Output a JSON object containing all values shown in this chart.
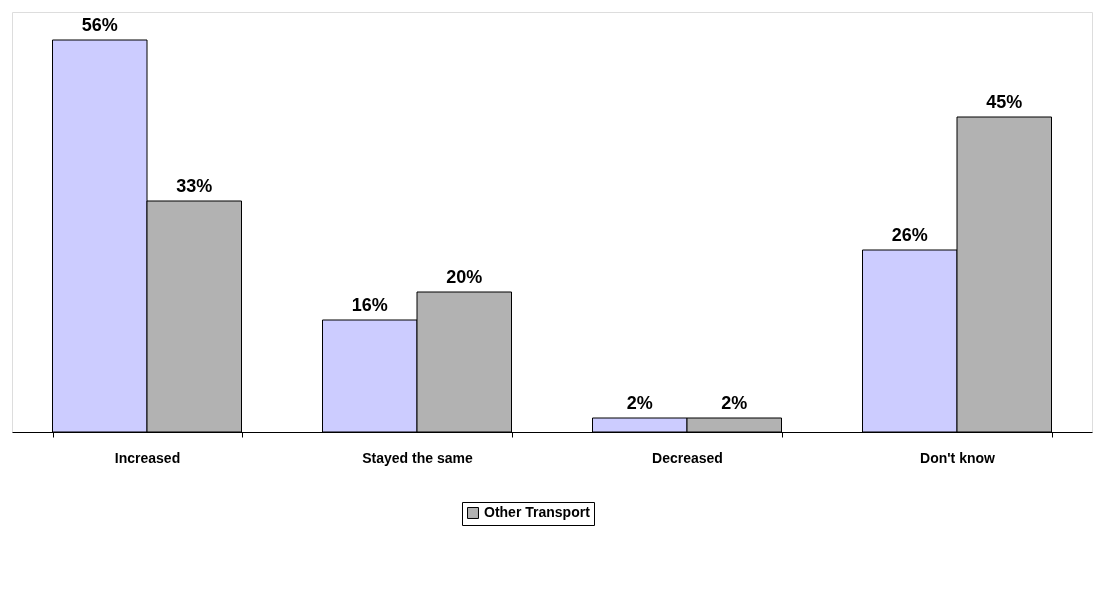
{
  "chart_data": {
    "type": "bar",
    "categories": [
      "Increased",
      "Stayed the same",
      "Decreased",
      "Don't know"
    ],
    "series": [
      {
        "color": "#ccccff",
        "values": [
          56,
          16,
          2,
          26
        ],
        "value_labels": [
          "56%",
          "16%",
          "2%",
          "26%"
        ]
      },
      {
        "name": "Other Transport",
        "color": "#b2b2b2",
        "values": [
          33,
          20,
          2,
          45
        ],
        "value_labels": [
          "33%",
          "20%",
          "2%",
          "45%"
        ]
      }
    ],
    "legend": "bottom",
    "grid": false
  }
}
